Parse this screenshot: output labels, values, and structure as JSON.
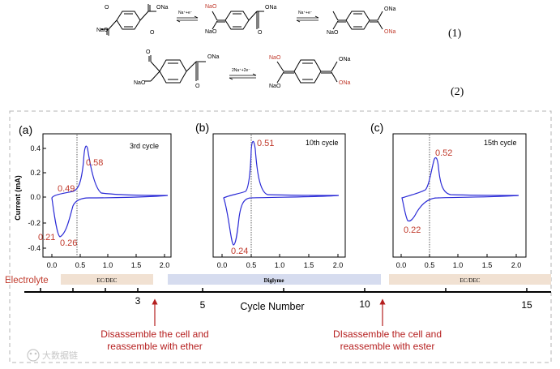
{
  "reactions": {
    "eq1": {
      "number": "(1)",
      "arrow1_label": "Na⁺+e⁻",
      "arrow2_label": "Na⁺+e⁻",
      "mol1_top": "ONa",
      "mol1_bottom": "NaO",
      "mol2_red": "NaO",
      "mol2_left": "NaO",
      "mol2_right": "ONa",
      "mol3_top": "ONa",
      "mol3_left": "NaO",
      "mol3_red": "ONa"
    },
    "eq2": {
      "number": "(2)",
      "arrow_label": "2Na⁺+2e⁻",
      "mol1_top": "ONa",
      "mol1_bottom": "NaO",
      "mol2_red": "NaO",
      "mol2_left": "NaO",
      "mol2_right": "ONa",
      "mol2_red2": "ONa"
    }
  },
  "panels": [
    {
      "letter": "(a)",
      "cycle_label": "3rd cycle",
      "peaks": [
        "0.58",
        "0.49",
        "0.21",
        "0.26"
      ]
    },
    {
      "letter": "(b)",
      "cycle_label": "10th cycle",
      "peaks": [
        "0.51",
        "0.24"
      ]
    },
    {
      "letter": "(c)",
      "cycle_label": "15th cycle",
      "peaks": [
        "0.52",
        "0.22"
      ]
    }
  ],
  "y_axis": {
    "title": "Current (mA)",
    "ticks": [
      "0.4",
      "0.2",
      "0.0",
      "-0.2",
      "-0.4"
    ]
  },
  "x_axis_ticks": [
    "0.0",
    "0.5",
    "1.0",
    "1.5",
    "2.0"
  ],
  "electrolyte": {
    "label": "Electrolyte",
    "segments": [
      "EC/DEC",
      "Diglyme",
      "EC/DEC"
    ]
  },
  "cycle_axis": {
    "title": "Cycle Number",
    "ticks": [
      "3",
      "5",
      "10",
      "15"
    ]
  },
  "annotations": {
    "left": [
      "Disassemble the cell and",
      "reassemble with ether"
    ],
    "right": [
      "DIsassemble the cell and",
      "reassemble with ester"
    ]
  },
  "watermark": "大数据链",
  "colors": {
    "curve": "#2b2bd6",
    "peak_label": "#c0392b",
    "annotation": "#b51e1e",
    "ester_bar": "#f1e1d2",
    "ether_bar": "#d6dcef"
  }
}
